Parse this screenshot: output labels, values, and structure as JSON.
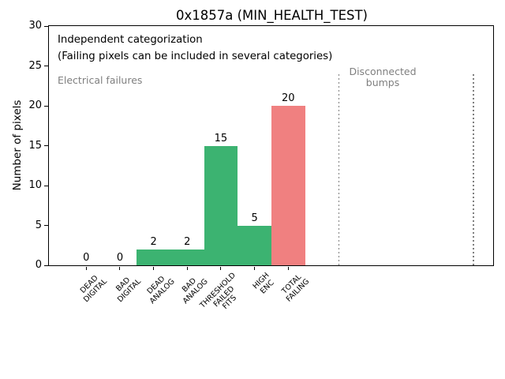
{
  "chart_data": {
    "type": "bar",
    "title": "0x1857a (MIN_HEALTH_TEST)",
    "ylabel": "Number of pixels",
    "xlabel": "",
    "categories": [
      "DEAD\nDIGITAL",
      "BAD\nDIGITAL",
      "DEAD\nANALOG",
      "BAD\nANALOG",
      "THRESHOLD\nFAILED\nFITS",
      "HIGH\nENC",
      "TOTAL\nFAILING"
    ],
    "values": [
      0,
      0,
      2,
      2,
      15,
      5,
      20
    ],
    "value_labels": [
      "0",
      "0",
      "2",
      "2",
      "15",
      "5",
      "20"
    ],
    "bar_colors": [
      "#3cb371",
      "#3cb371",
      "#3cb371",
      "#3cb371",
      "#3cb371",
      "#3cb371",
      "#f08080"
    ],
    "ylim": [
      0,
      30
    ],
    "yticks": [
      0,
      5,
      10,
      15,
      20,
      25,
      30
    ],
    "grid": false,
    "legend": "none",
    "colors": {
      "electrical_bar": "#3cb371",
      "total_bar": "#f08080",
      "annotation_gray": "#7f7f7f",
      "axes": "#000000"
    },
    "annotations": [
      {
        "id": "independent",
        "text": "Independent categorization",
        "color": "#000000"
      },
      {
        "id": "failing-note",
        "text": "(Failing pixels can be included in several categories)",
        "color": "#000000"
      },
      {
        "id": "electrical",
        "text": "Electrical failures",
        "color": "#7f7f7f"
      },
      {
        "id": "disconnected",
        "lines": [
          "Disconnected",
          "bumps"
        ],
        "color": "#7f7f7f"
      }
    ],
    "vlines": {
      "x_categories": [
        7.5,
        11.5
      ],
      "y_range": [
        0,
        24
      ],
      "style": "dotted",
      "color": "#7f7f7f"
    }
  }
}
